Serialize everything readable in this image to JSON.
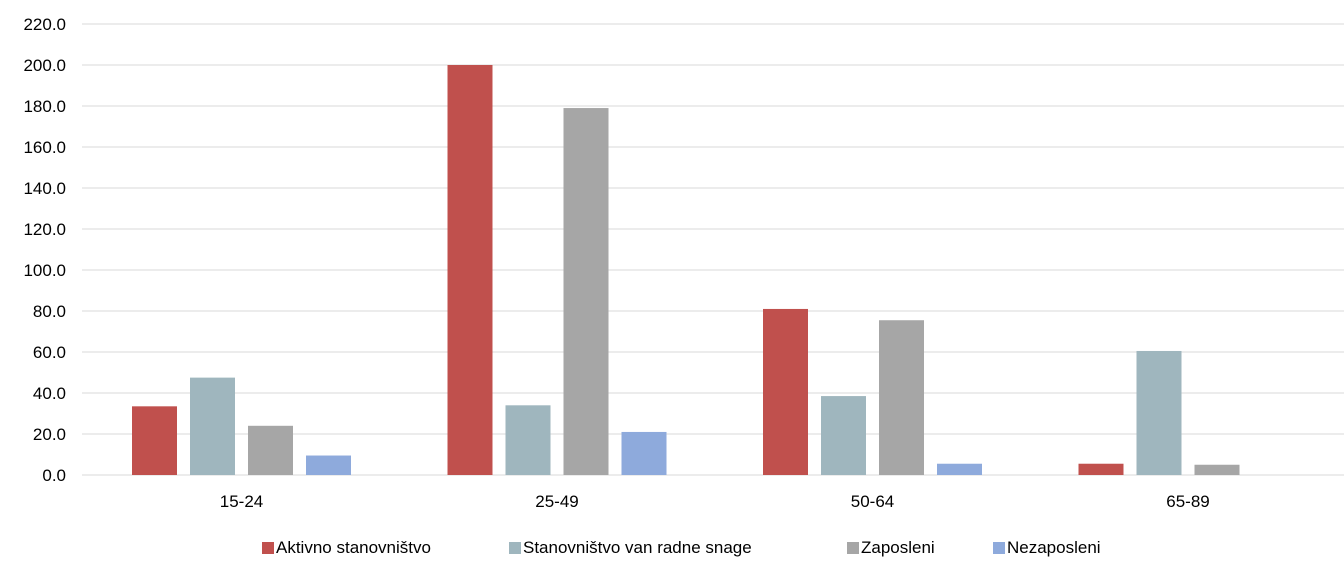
{
  "chart_data": {
    "type": "bar",
    "title": "",
    "xlabel": "",
    "ylabel": "",
    "categories": [
      "15-24",
      "25-49",
      "50-64",
      "65-89"
    ],
    "ylim": [
      0,
      220
    ],
    "yticks": [
      "0.0",
      "20.0",
      "40.0",
      "60.0",
      "80.0",
      "100.0",
      "120.0",
      "140.0",
      "160.0",
      "180.0",
      "200.0",
      "220.0"
    ],
    "grid": true,
    "legend_position": "bottom",
    "series": [
      {
        "name": "Aktivno stanovništvo",
        "color": "#C0504D",
        "values": [
          33.5,
          200.0,
          81.0,
          5.5
        ]
      },
      {
        "name": "Stanovništvo van radne snage",
        "color": "#9FB6BE",
        "values": [
          47.5,
          34.0,
          38.5,
          60.5
        ]
      },
      {
        "name": "Zaposleni",
        "color": "#A6A6A6",
        "values": [
          24.0,
          179.0,
          75.5,
          5.0
        ]
      },
      {
        "name": "Nezaposleni",
        "color": "#8EAADC",
        "values": [
          9.5,
          21.0,
          5.5,
          null
        ]
      }
    ]
  }
}
